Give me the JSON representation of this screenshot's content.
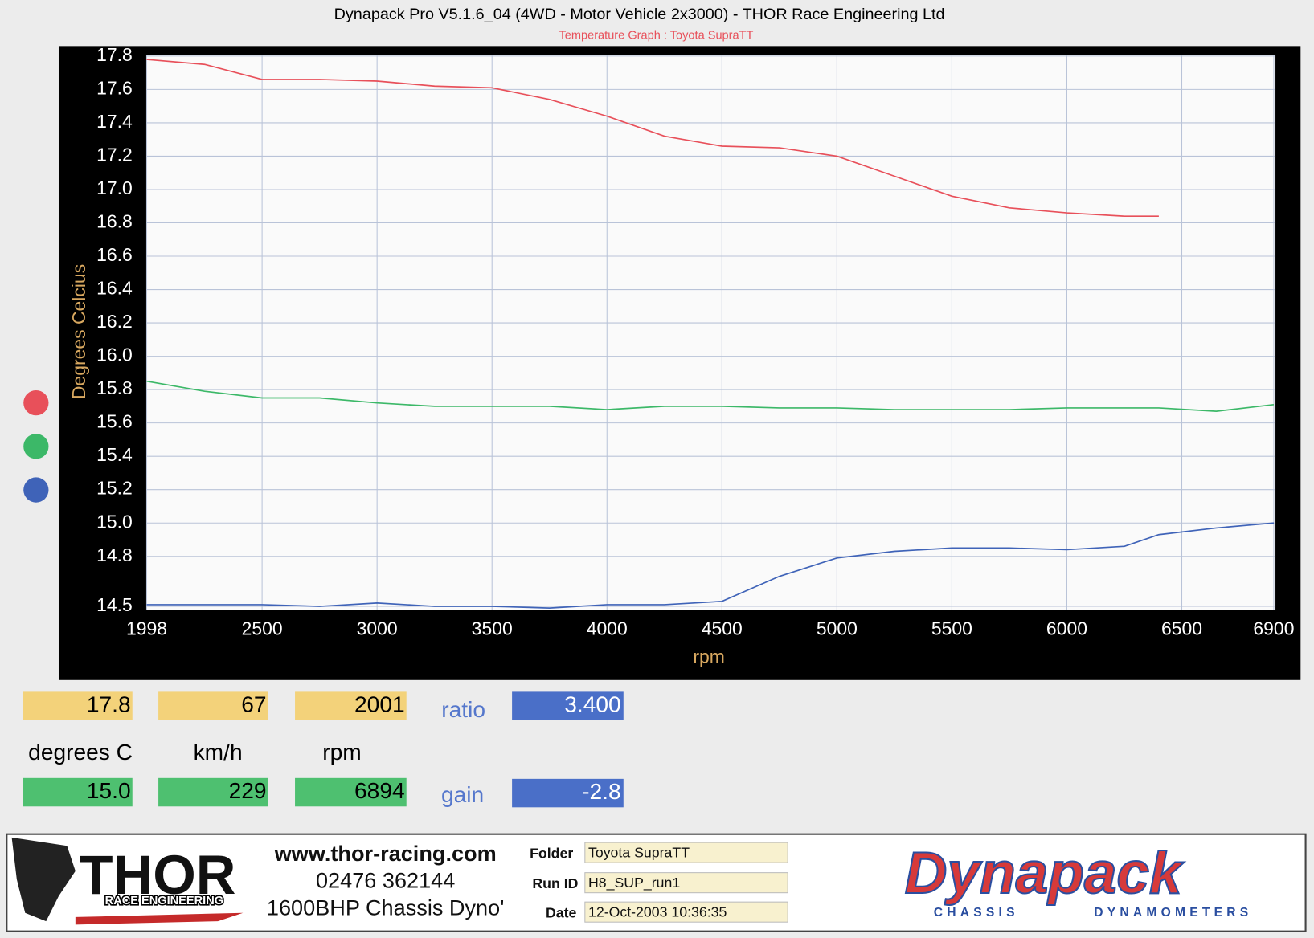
{
  "chart_data": {
    "type": "line",
    "title": "Dynapack Pro V5.1.6_04 (4WD - Motor Vehicle 2x3000) - THOR Race Engineering Ltd",
    "subtitle": "Temperature Graph : Toyota SupraTT",
    "x_label": "rpm",
    "y_label": "Degrees Celcius",
    "x": [
      1998,
      2250,
      2500,
      2750,
      3000,
      3250,
      3500,
      3750,
      4000,
      4250,
      4500,
      4750,
      5000,
      5250,
      5500,
      5750,
      6000,
      6250,
      6400,
      6650,
      6900
    ],
    "series": [
      {
        "color": "#e8505a",
        "values": [
          17.78,
          17.75,
          17.66,
          17.66,
          17.65,
          17.62,
          17.61,
          17.54,
          17.44,
          17.32,
          17.26,
          17.25,
          17.2,
          17.08,
          16.96,
          16.89,
          16.86,
          16.84,
          16.84,
          null,
          null
        ]
      },
      {
        "color": "#3cb868",
        "values": [
          15.85,
          15.79,
          15.75,
          15.75,
          15.72,
          15.7,
          15.7,
          15.7,
          15.68,
          15.7,
          15.7,
          15.69,
          15.69,
          15.68,
          15.68,
          15.68,
          15.69,
          15.69,
          15.69,
          15.67,
          15.71
        ]
      },
      {
        "color": "#3f63b8",
        "values": [
          14.51,
          14.51,
          14.51,
          14.5,
          14.52,
          14.5,
          14.5,
          14.49,
          14.51,
          14.51,
          14.53,
          14.68,
          14.79,
          14.83,
          14.85,
          14.85,
          14.84,
          14.86,
          14.93,
          14.97,
          15.0
        ]
      }
    ],
    "xlim": [
      1998,
      6900
    ],
    "xticks": [
      1998,
      2500,
      3000,
      3500,
      4000,
      4500,
      5000,
      5500,
      6000,
      6500,
      6900
    ],
    "ylim": [
      14.5,
      17.8
    ],
    "yticks": [
      17.8,
      17.6,
      17.4,
      17.2,
      {
        "value": 17,
        "label": "17.0"
      },
      16.8,
      16.6,
      16.4,
      16.2,
      {
        "value": 16,
        "label": "16.0"
      },
      15.8,
      15.6,
      15.4,
      15.2,
      {
        "value": 15,
        "label": "15.0"
      },
      14.8,
      14.5
    ],
    "grid": true
  },
  "readouts": {
    "top": [
      "17.8",
      "67",
      "2001"
    ],
    "units": [
      "degrees C",
      "km/h",
      "rpm"
    ],
    "bottom": [
      "15.0",
      "229",
      "6894"
    ],
    "ratio": {
      "label": "ratio",
      "value": "3.400"
    },
    "gain": {
      "label": "gain",
      "value": "-2.8"
    }
  },
  "footer": {
    "logo": "THOR",
    "logo_sub": "RACE ENGINEERING",
    "web": "www.thor-racing.com",
    "phone": "02476 362144",
    "dyno": "1600BHP Chassis Dyno'",
    "fields": [
      {
        "label": "Folder",
        "value": "Toyota SupraTT"
      },
      {
        "label": "Run ID",
        "value": "H8_SUP_run1"
      },
      {
        "label": "Date",
        "value": "12-Oct-2003  10:36:35"
      }
    ],
    "brand": "Dynapack",
    "brand_sub1": "CHASSIS",
    "brand_sub2": "DYNAMOMETERS"
  }
}
